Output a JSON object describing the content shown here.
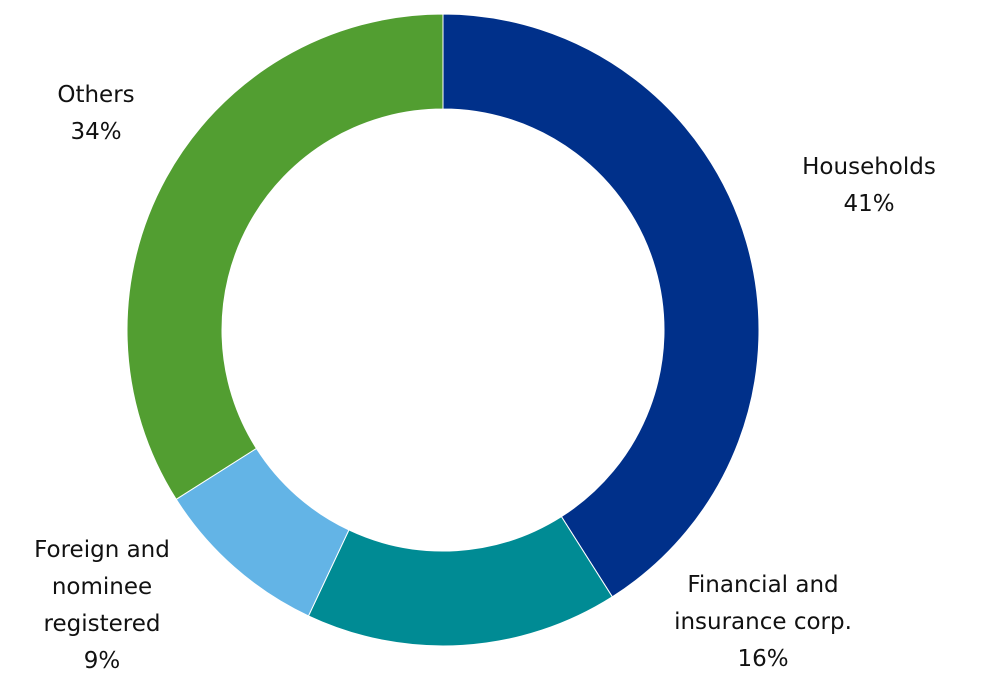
{
  "chart_data": {
    "type": "pie",
    "variant": "donut",
    "slices": [
      {
        "name": "Households",
        "label_lines": [
          "Households"
        ],
        "value": 41,
        "value_label": "41%",
        "color": "#00308a"
      },
      {
        "name": "Financial and insurance corp.",
        "label_lines": [
          "Financial and",
          "insurance corp."
        ],
        "value": 16,
        "value_label": "16%",
        "color": "#008b94"
      },
      {
        "name": "Foreign and nominee registered",
        "label_lines": [
          "Foreign and",
          "nominee",
          "registered"
        ],
        "value": 9,
        "value_label": "9%",
        "color": "#63b4e6"
      },
      {
        "name": "Others",
        "label_lines": [
          "Others"
        ],
        "value": 34,
        "value_label": "34%",
        "color": "#529e31"
      }
    ],
    "start_angle": "12 o'clock",
    "direction": "clockwise",
    "legend": "none"
  }
}
